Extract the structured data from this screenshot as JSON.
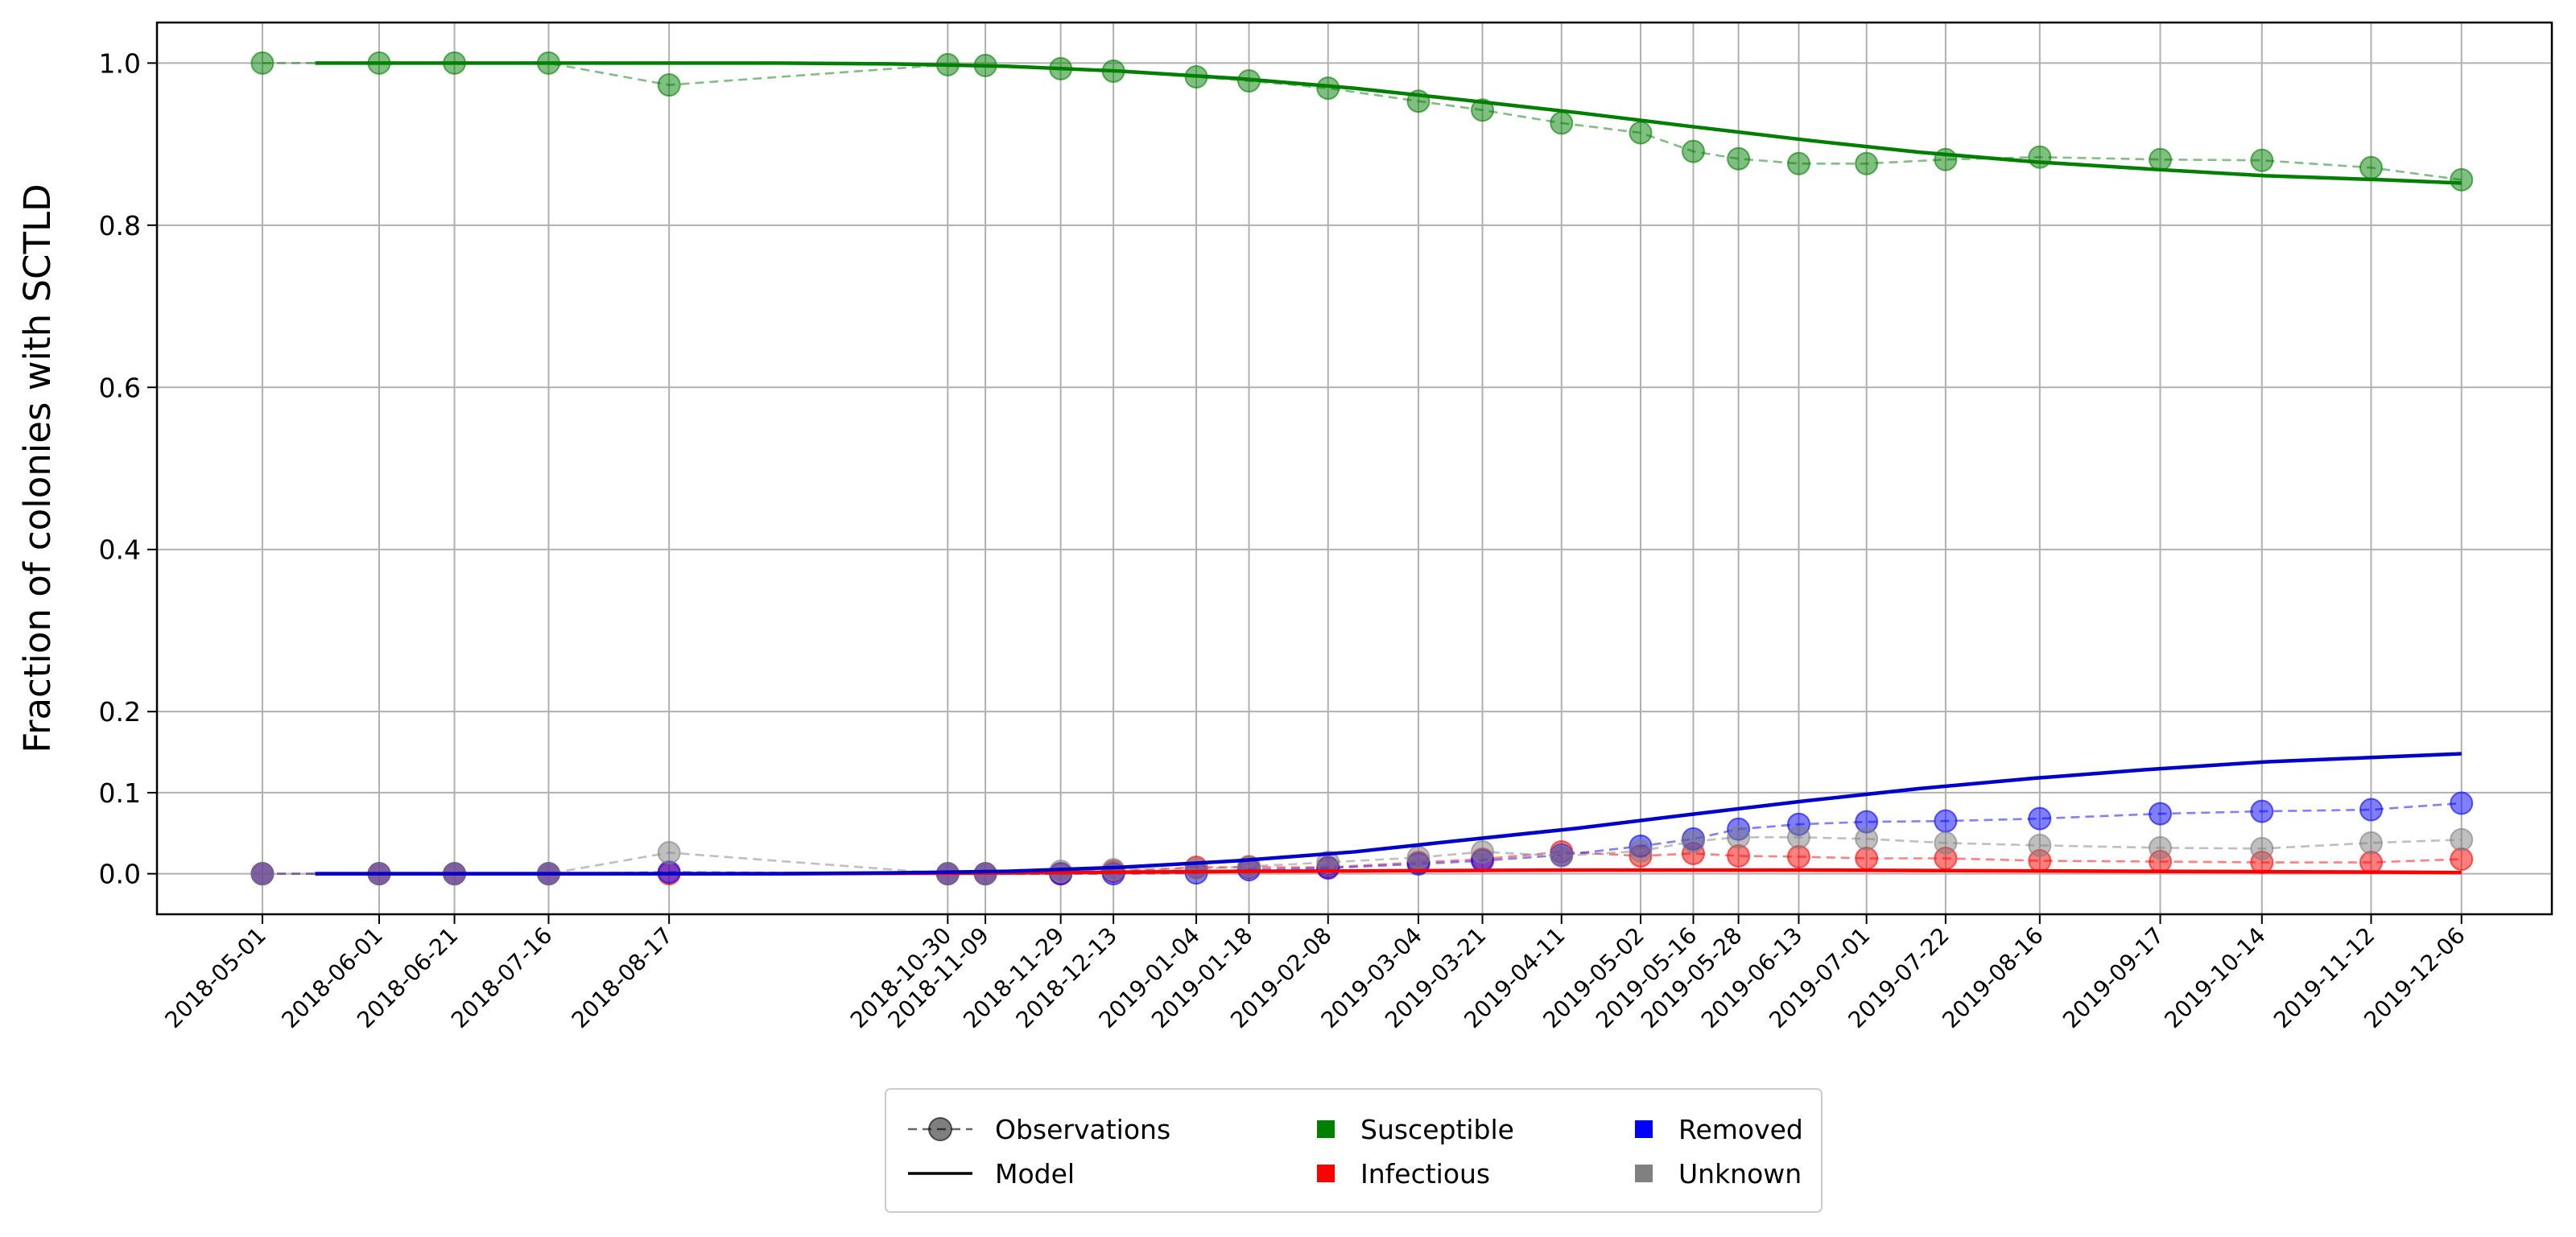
{
  "chart_data": {
    "type": "line",
    "title": "",
    "xlabel": "",
    "ylabel": "Fraction of colonies with SCTLD",
    "ylim": [
      -0.05,
      1.05
    ],
    "grid": true,
    "y_ticks": [
      0.0,
      0.1,
      0.2,
      0.4,
      0.6,
      0.8,
      1.0
    ],
    "y_tick_labels": [
      "0.0",
      "0.1",
      "0.2",
      "0.4",
      "0.6",
      "0.8",
      "1.0"
    ],
    "x_dates": [
      "2018-05-01",
      "2018-06-01",
      "2018-06-21",
      "2018-07-16",
      "2018-08-17",
      "2018-10-30",
      "2018-11-09",
      "2018-11-29",
      "2018-12-13",
      "2019-01-04",
      "2019-01-18",
      "2019-02-08",
      "2019-03-04",
      "2019-03-21",
      "2019-04-11",
      "2019-05-02",
      "2019-05-16",
      "2019-05-28",
      "2019-06-13",
      "2019-07-01",
      "2019-07-22",
      "2019-08-16",
      "2019-09-17",
      "2019-10-14",
      "2019-11-12",
      "2019-12-06"
    ],
    "xlim": [
      "2018-04-03",
      "2019-12-30"
    ],
    "observations": [
      {
        "name": "Susceptible",
        "color": "#008000",
        "values": [
          1.0,
          1.0,
          1.0,
          1.0,
          0.973,
          0.998,
          0.997,
          0.993,
          0.99,
          0.983,
          0.978,
          0.969,
          0.953,
          0.942,
          0.926,
          0.914,
          0.891,
          0.882,
          0.876,
          0.876,
          0.881,
          0.884,
          0.881,
          0.88,
          0.871,
          0.856
        ]
      },
      {
        "name": "Infectious",
        "color": "#ff0000",
        "values": [
          0.0,
          0.0,
          0.0,
          0.0,
          0.0,
          0.0,
          0.0,
          0.0,
          0.003,
          0.008,
          0.008,
          0.008,
          0.014,
          0.018,
          0.027,
          0.022,
          0.025,
          0.022,
          0.021,
          0.019,
          0.019,
          0.016,
          0.015,
          0.014,
          0.014,
          0.018
        ]
      },
      {
        "name": "Removed",
        "color": "#0000ff",
        "values": [
          0.0,
          0.0,
          0.0,
          0.0,
          0.002,
          0.0,
          0.0,
          0.0,
          0.0,
          0.001,
          0.005,
          0.007,
          0.012,
          0.016,
          0.023,
          0.034,
          0.043,
          0.055,
          0.061,
          0.064,
          0.065,
          0.068,
          0.074,
          0.077,
          0.079,
          0.087
        ]
      },
      {
        "name": "Unknown",
        "color": "#808080",
        "values": [
          0.0,
          0.0,
          0.0,
          0.0,
          0.026,
          0.0,
          0.0,
          0.003,
          0.005,
          0.006,
          0.009,
          0.014,
          0.02,
          0.027,
          0.022,
          0.028,
          0.04,
          0.045,
          0.045,
          0.043,
          0.038,
          0.035,
          0.032,
          0.031,
          0.038,
          0.042
        ]
      }
    ],
    "model": [
      {
        "name": "Susceptible",
        "color": "#008000",
        "x": [
          "2018-05-15",
          "2018-06-15",
          "2018-07-15",
          "2018-08-15",
          "2018-09-15",
          "2018-10-15",
          "2018-11-15",
          "2018-12-15",
          "2019-01-15",
          "2019-02-15",
          "2019-03-15",
          "2019-04-15",
          "2019-05-15",
          "2019-06-15",
          "2019-07-15",
          "2019-08-15",
          "2019-09-15",
          "2019-10-15",
          "2019-11-15",
          "2019-12-06"
        ],
        "values": [
          1.0,
          1.0,
          1.0,
          1.0,
          1.0,
          0.999,
          0.996,
          0.99,
          0.981,
          0.969,
          0.955,
          0.939,
          0.922,
          0.905,
          0.89,
          0.878,
          0.869,
          0.861,
          0.856,
          0.852
        ]
      },
      {
        "name": "Infectious",
        "color": "#ff0000",
        "x": [
          "2018-05-15",
          "2018-06-15",
          "2018-07-15",
          "2018-08-15",
          "2018-09-15",
          "2018-10-15",
          "2018-11-15",
          "2018-12-15",
          "2019-01-15",
          "2019-02-15",
          "2019-03-15",
          "2019-04-15",
          "2019-05-15",
          "2019-06-15",
          "2019-07-15",
          "2019-08-15",
          "2019-09-15",
          "2019-10-15",
          "2019-11-15",
          "2019-12-06"
        ],
        "values": [
          0.0,
          0.0,
          0.0,
          0.0,
          0.0,
          0.0005,
          0.001,
          0.002,
          0.003,
          0.0035,
          0.004,
          0.0045,
          0.0045,
          0.0045,
          0.004,
          0.0035,
          0.003,
          0.0025,
          0.002,
          0.0015
        ]
      },
      {
        "name": "Removed",
        "color": "#0000cc",
        "x": [
          "2018-05-15",
          "2018-06-15",
          "2018-07-15",
          "2018-08-15",
          "2018-09-15",
          "2018-10-15",
          "2018-11-15",
          "2018-12-15",
          "2019-01-15",
          "2019-02-15",
          "2019-03-15",
          "2019-04-15",
          "2019-05-15",
          "2019-06-15",
          "2019-07-15",
          "2019-08-15",
          "2019-09-15",
          "2019-10-15",
          "2019-11-15",
          "2019-12-06"
        ],
        "values": [
          0.0,
          0.0,
          0.0,
          0.0,
          0.0,
          0.001,
          0.003,
          0.008,
          0.016,
          0.027,
          0.041,
          0.056,
          0.073,
          0.09,
          0.105,
          0.118,
          0.129,
          0.138,
          0.144,
          0.148
        ]
      }
    ],
    "legend": {
      "placement": "bottom-center",
      "items": [
        {
          "label": "Observations",
          "marker": "circle-dashed",
          "color": "#000000"
        },
        {
          "label": "Model",
          "marker": "line",
          "color": "#000000"
        },
        {
          "label": "Susceptible",
          "marker": "square",
          "color": "#008000"
        },
        {
          "label": "Infectious",
          "marker": "square",
          "color": "#ff0000"
        },
        {
          "label": "Removed",
          "marker": "square",
          "color": "#0000ff"
        },
        {
          "label": "Unknown",
          "marker": "square",
          "color": "#808080"
        }
      ]
    }
  }
}
